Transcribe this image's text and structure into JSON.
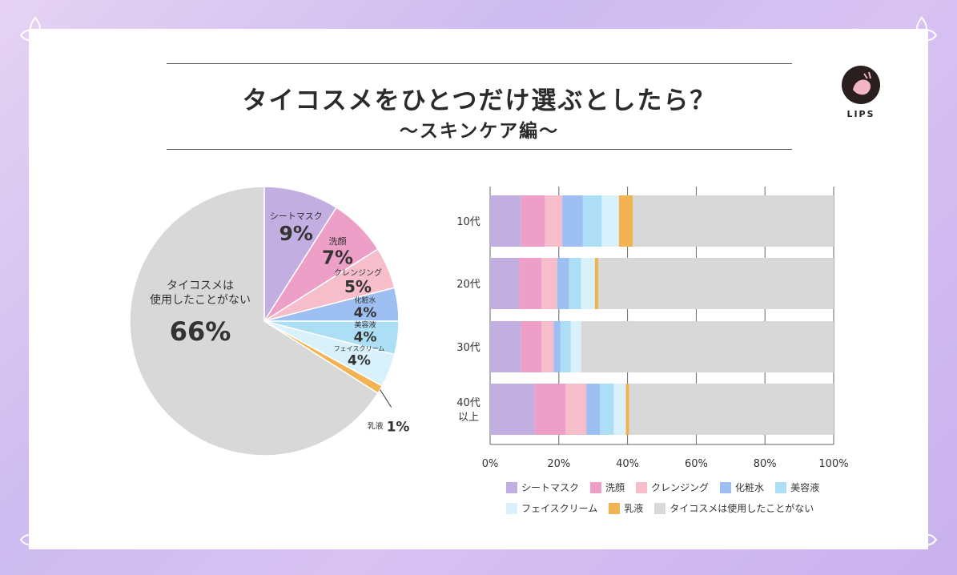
{
  "title": "タイコスメをひとつだけ選ぶとしたら？",
  "subtitle": "〜スキンケア編〜",
  "logo_text": "LIPS",
  "colors": [
    "#c3aee2",
    "#ee9fc8",
    "#f6bdcb",
    "#9ebff1",
    "#acdff6",
    "#d8f1fb",
    "#f2b453",
    "#d8d8d8"
  ],
  "chart_data": [
    {
      "type": "pie",
      "labels": [
        "シートマスク",
        "洗顔",
        "クレンジング",
        "化粧水",
        "美容液",
        "フェイスクリーム",
        "乳液",
        "タイコスメは使用したことがない"
      ],
      "display_labels": [
        "シートマスク",
        "洗顔",
        "クレンジング",
        "化粧水",
        "美容液",
        "フェイスクリーム",
        "乳液",
        "タイコスメは\n使用したことがない"
      ],
      "values": [
        9,
        7,
        5,
        4,
        4,
        4,
        1,
        66
      ],
      "value_labels": [
        "9%",
        "7%",
        "5%",
        "4%",
        "4%",
        "4%",
        "1%",
        "66%"
      ]
    },
    {
      "type": "bar",
      "orientation": "horizontal",
      "stacked": true,
      "categories": [
        "10代",
        "20代",
        "30代",
        "40代\n以上"
      ],
      "series": [
        {
          "name": "シートマスク",
          "values": [
            9,
            8.5,
            9,
            13
          ]
        },
        {
          "name": "洗顔",
          "values": [
            7,
            6.5,
            6,
            9
          ]
        },
        {
          "name": "クレンジング",
          "values": [
            5,
            4.5,
            3.5,
            6
          ]
        },
        {
          "name": "化粧水",
          "values": [
            6,
            3.5,
            2,
            4
          ]
        },
        {
          "name": "美容液",
          "values": [
            5.5,
            3.5,
            3,
            4
          ]
        },
        {
          "name": "フェイスクリーム",
          "values": [
            5,
            4,
            3,
            3.5
          ]
        },
        {
          "name": "乳液",
          "values": [
            4,
            1,
            0,
            1
          ]
        },
        {
          "name": "タイコスメは使用したことがない",
          "values": [
            58.5,
            68.5,
            73.5,
            59.5
          ]
        }
      ],
      "xticks": [
        "0%",
        "20%",
        "40%",
        "60%",
        "80%",
        "100%"
      ],
      "xlim": [
        0,
        100
      ],
      "grid": true,
      "legend_position": "bottom"
    }
  ]
}
